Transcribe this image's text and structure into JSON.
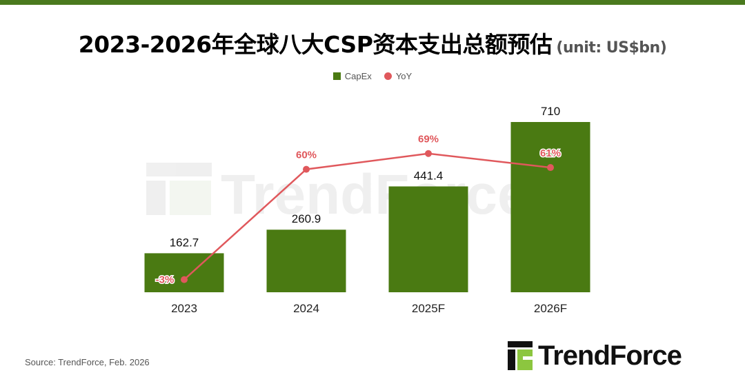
{
  "header": {
    "title": "2023-2026年全球八大CSP资本支出总额预估",
    "unit": "(unit: US$bn)"
  },
  "chart_data": {
    "type": "bar",
    "title": "2023-2026年全球八大CSP资本支出总额预估",
    "categories": [
      "2023",
      "2024",
      "2025F",
      "2026F"
    ],
    "series": [
      {
        "name": "CapEx",
        "type": "bar",
        "color": "#4a7a12",
        "values": [
          162.7,
          260.9,
          441.4,
          710
        ],
        "labels": [
          "162.7",
          "260.9",
          "441.4",
          "710"
        ]
      },
      {
        "name": "YoY",
        "type": "line",
        "color": "#e0585c",
        "values": [
          -3,
          60,
          69,
          61
        ],
        "labels": [
          "-3%",
          "60%",
          "69%",
          "61%"
        ]
      }
    ],
    "legend": "top-center",
    "grid": false,
    "ylim": [
      0,
      710
    ]
  },
  "footer": {
    "source": "Source: TrendForce, Feb. 2026",
    "logo_text": "TrendForce",
    "watermark_text": "TrendForce"
  },
  "colors": {
    "accent": "#4a7a1e",
    "bar": "#4a7a12",
    "line": "#e0585c",
    "logo_green": "#8cc63f"
  }
}
